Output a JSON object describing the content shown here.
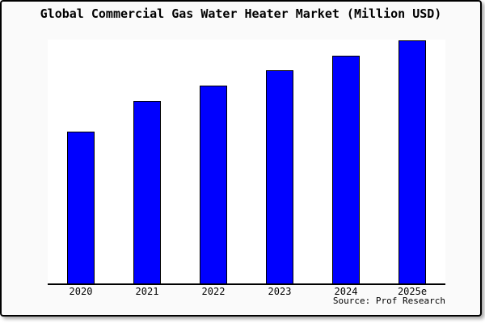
{
  "card": {
    "background": "#fafafa",
    "border_color": "#000000"
  },
  "chart_data": {
    "type": "bar",
    "title": "Global Commercial Gas Water Heater Market (Million USD)",
    "categories": [
      "2020",
      "2021",
      "2022",
      "2023",
      "2024",
      "2025e"
    ],
    "values": [
      62.5,
      75.1,
      81.4,
      87.7,
      93.7,
      100
    ],
    "value_basis": "relative estimate, 2025e = 100 (chart displays no y-axis labels or data labels)",
    "ylim": [
      0,
      100
    ],
    "xlabel": "",
    "ylabel": "",
    "grid": false,
    "legend": null,
    "y_axis_visible": false,
    "bar_color": "#0000ff",
    "bar_border_color": "#000000",
    "axis_color": "#000000",
    "plot_background": "#ffffff",
    "source": "Source: Prof Research"
  }
}
